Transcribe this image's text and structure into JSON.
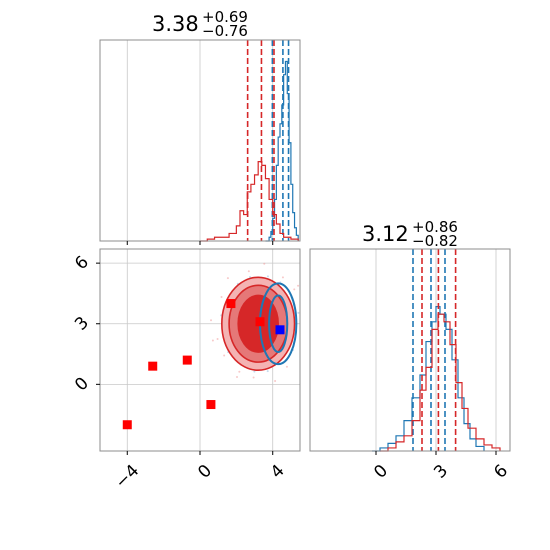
{
  "chart_data": {
    "type": "corner",
    "panels": [
      {
        "id": "marginal-x",
        "type": "histogram",
        "title": {
          "value": "3.38",
          "plus": "+0.69",
          "minus": "−0.76"
        },
        "xlim": [
          -5.5,
          5.5
        ],
        "grid": true,
        "series": [
          {
            "color": "#1f77b4",
            "bins": [
              [
                3.6,
                0.0
              ],
              [
                3.8,
                0.02
              ],
              [
                3.9,
                0.05
              ],
              [
                4.0,
                0.12
              ],
              [
                4.1,
                0.22
              ],
              [
                4.2,
                0.4
              ],
              [
                4.3,
                0.55
              ],
              [
                4.4,
                0.62
              ],
              [
                4.5,
                0.72
              ],
              [
                4.6,
                0.88
              ],
              [
                4.7,
                0.95
              ],
              [
                4.8,
                0.78
              ],
              [
                4.9,
                0.52
              ],
              [
                5.0,
                0.3
              ],
              [
                5.1,
                0.15
              ],
              [
                5.2,
                0.07
              ],
              [
                5.3,
                0.03
              ],
              [
                5.4,
                0.0
              ]
            ],
            "quantiles": [
              3.98,
              4.56,
              4.87
            ]
          },
          {
            "color": "#d62728",
            "bins": [
              [
                0.0,
                0.0
              ],
              [
                0.4,
                0.01
              ],
              [
                0.8,
                0.02
              ],
              [
                1.2,
                0.02
              ],
              [
                1.6,
                0.04
              ],
              [
                2.0,
                0.08
              ],
              [
                2.2,
                0.16
              ],
              [
                2.4,
                0.14
              ],
              [
                2.6,
                0.26
              ],
              [
                2.8,
                0.3
              ],
              [
                3.0,
                0.35
              ],
              [
                3.2,
                0.42
              ],
              [
                3.4,
                0.4
              ],
              [
                3.6,
                0.33
              ],
              [
                3.8,
                0.22
              ],
              [
                4.0,
                0.14
              ],
              [
                4.2,
                0.09
              ],
              [
                4.4,
                0.04
              ],
              [
                4.6,
                0.02
              ],
              [
                5.0,
                0.01
              ],
              [
                5.4,
                0.0
              ]
            ],
            "quantiles": [
              2.62,
              3.38,
              4.07
            ]
          }
        ]
      },
      {
        "id": "joint",
        "type": "contour",
        "xlim": [
          -5.5,
          5.5
        ],
        "ylim": [
          -3.3,
          6.7
        ],
        "xticks": [
          "−4",
          "0",
          "4"
        ],
        "yticks": [
          "0",
          "3",
          "6"
        ],
        "grid": true,
        "contours_red": [
          {
            "cx": 3.2,
            "cy": 3.0,
            "rx": 2.0,
            "ry": 2.3,
            "fill": "#f4b3b3"
          },
          {
            "cx": 3.2,
            "cy": 3.0,
            "rx": 1.6,
            "ry": 1.9,
            "fill": "#e57878"
          },
          {
            "cx": 3.2,
            "cy": 3.0,
            "rx": 1.1,
            "ry": 1.4,
            "fill": "#d62728"
          }
        ],
        "contours_blue": [
          {
            "cx": 4.3,
            "cy": 3.0,
            "rx": 1.0,
            "ry": 2.0
          },
          {
            "cx": 4.3,
            "cy": 3.0,
            "rx": 0.5,
            "ry": 1.4
          }
        ],
        "markers_red": [
          [
            -4.0,
            -2.0
          ],
          [
            -2.6,
            0.9
          ],
          [
            -0.7,
            1.2
          ],
          [
            0.6,
            -1.0
          ],
          [
            1.7,
            4.0
          ],
          [
            3.3,
            3.1
          ]
        ],
        "markers_blue": [
          [
            4.4,
            2.7
          ]
        ]
      },
      {
        "id": "marginal-y",
        "type": "histogram",
        "title": {
          "value": "3.12",
          "plus": "+0.86",
          "minus": "−0.82"
        },
        "xlim": [
          -3.3,
          6.7
        ],
        "xticks": [
          "0",
          "3",
          "6"
        ],
        "grid": true,
        "series": [
          {
            "color": "#1f77b4",
            "bins": [
              [
                -0.2,
                0.0
              ],
              [
                0.2,
                0.02
              ],
              [
                0.6,
                0.05
              ],
              [
                1.0,
                0.1
              ],
              [
                1.4,
                0.2
              ],
              [
                1.8,
                0.35
              ],
              [
                2.2,
                0.5
              ],
              [
                2.5,
                0.72
              ],
              [
                2.8,
                0.85
              ],
              [
                3.0,
                0.95
              ],
              [
                3.2,
                0.9
              ],
              [
                3.5,
                0.8
              ],
              [
                3.8,
                0.6
              ],
              [
                4.1,
                0.35
              ],
              [
                4.4,
                0.18
              ],
              [
                4.7,
                0.08
              ],
              [
                5.0,
                0.03
              ],
              [
                5.4,
                0.0
              ]
            ],
            "quantiles": [
              1.85,
              2.75,
              3.45
            ]
          },
          {
            "color": "#d62728",
            "bins": [
              [
                0.2,
                0.0
              ],
              [
                0.6,
                0.02
              ],
              [
                1.0,
                0.06
              ],
              [
                1.4,
                0.1
              ],
              [
                1.8,
                0.2
              ],
              [
                2.2,
                0.4
              ],
              [
                2.5,
                0.55
              ],
              [
                2.8,
                0.8
              ],
              [
                3.1,
                0.9
              ],
              [
                3.4,
                0.85
              ],
              [
                3.7,
                0.7
              ],
              [
                4.0,
                0.45
              ],
              [
                4.3,
                0.28
              ],
              [
                4.6,
                0.15
              ],
              [
                5.0,
                0.08
              ],
              [
                5.4,
                0.04
              ],
              [
                5.8,
                0.02
              ],
              [
                6.2,
                0.0
              ]
            ],
            "quantiles": [
              2.3,
              3.12,
              3.98
            ]
          }
        ]
      }
    ]
  }
}
